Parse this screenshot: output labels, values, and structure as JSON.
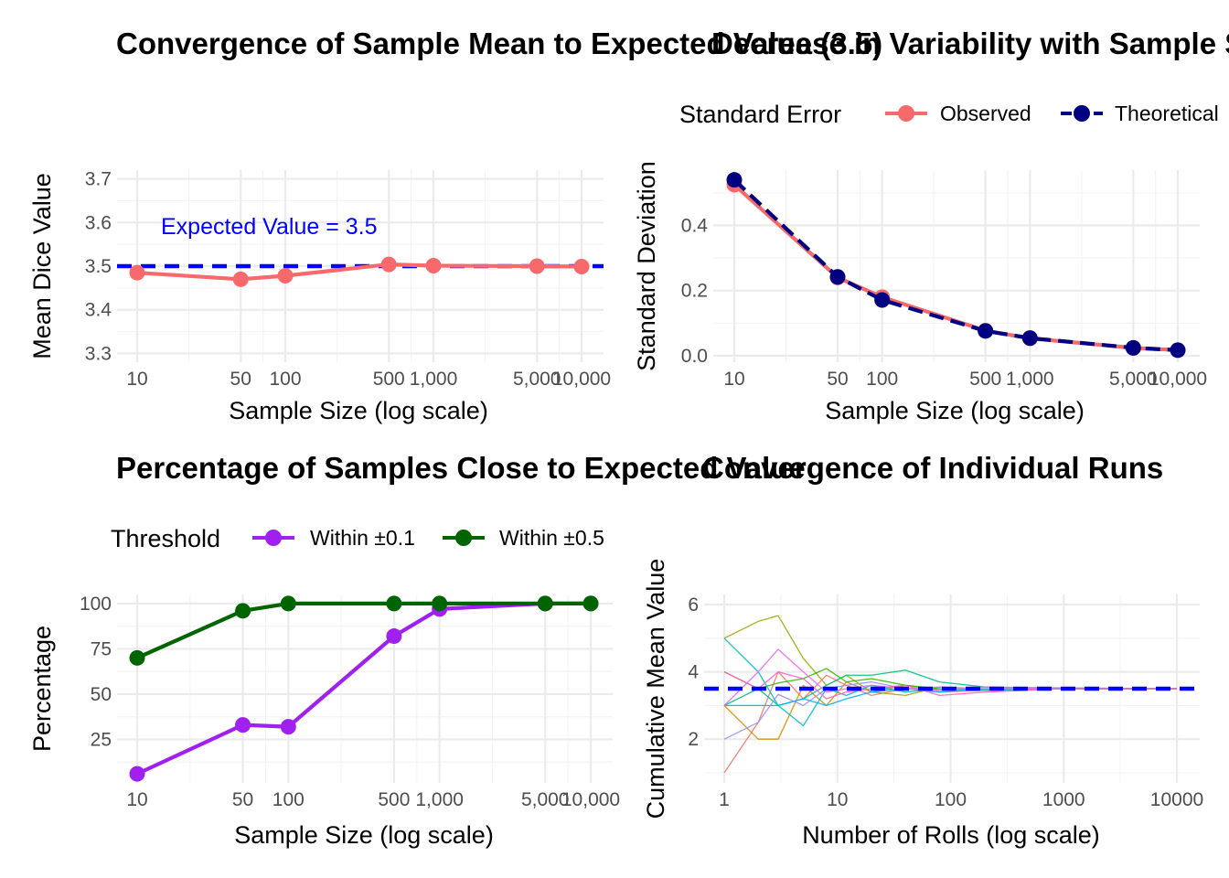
{
  "chart_data": [
    {
      "type": "line",
      "title": "Convergence of Sample Mean to Expected Value (3.5)",
      "xlabel": "Sample Size (log scale)",
      "ylabel": "Mean Dice Value",
      "x_scale": "log10",
      "x_ticks": [
        10,
        50,
        100,
        500,
        1000,
        5000,
        10000
      ],
      "x_tick_labels": [
        "10",
        "50",
        "100",
        "500",
        "1,000",
        "5,000",
        "10,000"
      ],
      "y_ticks": [
        3.3,
        3.4,
        3.5,
        3.6,
        3.7
      ],
      "y_tick_labels": [
        "3.3",
        "3.4",
        "3.5",
        "3.6",
        "3.7"
      ],
      "ylim": [
        3.28,
        3.72
      ],
      "grid": true,
      "series": [
        {
          "color": "#f8696b",
          "x": [
            10,
            50,
            100,
            500,
            1000,
            5000,
            10000
          ],
          "values": [
            3.485,
            3.47,
            3.478,
            3.504,
            3.501,
            3.5,
            3.499
          ]
        }
      ],
      "reference_line": {
        "y": 3.5,
        "color": "#0000ff",
        "style": "dashed"
      },
      "annotation": {
        "text": "Expected Value = 3.5",
        "x": 10,
        "y": 3.59,
        "color": "#0000ff"
      }
    },
    {
      "type": "line",
      "title": "Decrease in Variability with Sample Size",
      "xlabel": "Sample Size (log scale)",
      "ylabel": "Standard Deviation",
      "x_scale": "log10",
      "x_ticks": [
        10,
        50,
        100,
        500,
        1000,
        5000,
        10000
      ],
      "x_tick_labels": [
        "10",
        "50",
        "100",
        "500",
        "1,000",
        "5,000",
        "10,000"
      ],
      "y_ticks": [
        0.0,
        0.2,
        0.4
      ],
      "y_tick_labels": [
        "0.0",
        "0.2",
        "0.4"
      ],
      "ylim": [
        -0.02,
        0.57
      ],
      "grid": true,
      "legend": {
        "title": "Standard Error",
        "position": "top"
      },
      "series": [
        {
          "name": "Observed",
          "color": "#f8696b",
          "style": "solid",
          "x": [
            10,
            50,
            100,
            500,
            1000,
            5000,
            10000
          ],
          "values": [
            0.525,
            0.24,
            0.18,
            0.077,
            0.053,
            0.024,
            0.017
          ]
        },
        {
          "name": "Theoretical",
          "color": "#000080",
          "style": "dashed",
          "x": [
            10,
            50,
            100,
            500,
            1000,
            5000,
            10000
          ],
          "values": [
            0.54,
            0.242,
            0.171,
            0.076,
            0.054,
            0.024,
            0.017
          ]
        }
      ]
    },
    {
      "type": "line",
      "title": "Percentage of Samples Close to Expected Value",
      "xlabel": "Sample Size (log scale)",
      "ylabel": "Percentage",
      "x_scale": "log10",
      "x_ticks": [
        10,
        50,
        100,
        500,
        1000,
        5000,
        10000
      ],
      "x_tick_labels": [
        "10",
        "50",
        "100",
        "500",
        "1,000",
        "5,000",
        "10,000"
      ],
      "y_ticks": [
        25,
        50,
        75,
        100
      ],
      "y_tick_labels": [
        "25",
        "50",
        "75",
        "100"
      ],
      "ylim": [
        1,
        105
      ],
      "grid": true,
      "legend": {
        "title": "Threshold",
        "position": "top"
      },
      "series": [
        {
          "name": "Within ±0.1",
          "color": "#a020f0",
          "x": [
            10,
            50,
            100,
            500,
            1000,
            5000,
            10000
          ],
          "values": [
            6,
            33,
            32,
            82,
            97,
            100,
            100
          ]
        },
        {
          "name": "Within ±0.5",
          "color": "#006400",
          "x": [
            10,
            50,
            100,
            500,
            1000,
            5000,
            10000
          ],
          "values": [
            70,
            96,
            100,
            100,
            100,
            100,
            100
          ]
        }
      ]
    },
    {
      "type": "line",
      "title": "Convergence of Individual Runs",
      "xlabel": "Number of Rolls (log scale)",
      "ylabel": "Cumulative Mean Value",
      "x_scale": "log10",
      "x_ticks": [
        1,
        10,
        100,
        1000,
        10000
      ],
      "x_tick_labels": [
        "1",
        "10",
        "100",
        "1000",
        "10000"
      ],
      "y_ticks": [
        2,
        4,
        6
      ],
      "y_tick_labels": [
        "2",
        "4",
        "6"
      ],
      "ylim": [
        0.7,
        6.3
      ],
      "xlim": [
        1,
        13000
      ],
      "grid": true,
      "reference_line": {
        "y": 3.5,
        "color": "#0000ff",
        "style": "dashed"
      },
      "runs": [
        {
          "color": "#f8766d",
          "x": [
            1,
            2,
            3,
            5,
            8,
            12,
            20,
            40,
            80,
            200,
            1000,
            10000
          ],
          "values": [
            1.0,
            2.5,
            4.0,
            3.2,
            3.9,
            3.6,
            3.3,
            3.5,
            3.4,
            3.45,
            3.52,
            3.5
          ]
        },
        {
          "color": "#d89000",
          "x": [
            1,
            2,
            3,
            5,
            8,
            12,
            20,
            40,
            80,
            200,
            1000,
            10000
          ],
          "values": [
            3.0,
            2.0,
            2.0,
            3.6,
            3.0,
            3.7,
            3.4,
            3.6,
            3.45,
            3.55,
            3.49,
            3.5
          ]
        },
        {
          "color": "#a3a500",
          "x": [
            1,
            2,
            3,
            5,
            8,
            12,
            20,
            40,
            80,
            200,
            1000,
            10000
          ],
          "values": [
            5.0,
            5.5,
            5.67,
            4.4,
            3.6,
            3.9,
            3.4,
            3.3,
            3.55,
            3.48,
            3.51,
            3.5
          ]
        },
        {
          "color": "#39b600",
          "x": [
            1,
            2,
            3,
            5,
            8,
            12,
            20,
            40,
            80,
            200,
            1000,
            10000
          ],
          "values": [
            4.0,
            3.5,
            3.67,
            3.8,
            4.1,
            3.7,
            3.8,
            3.6,
            3.5,
            3.45,
            3.5,
            3.5
          ]
        },
        {
          "color": "#00bf7d",
          "x": [
            1,
            2,
            3,
            5,
            8,
            12,
            20,
            40,
            80,
            200,
            1000,
            10000
          ],
          "values": [
            3.0,
            3.5,
            3.0,
            3.2,
            3.6,
            3.9,
            3.9,
            4.05,
            3.7,
            3.55,
            3.52,
            3.5
          ]
        },
        {
          "color": "#00bfc4",
          "x": [
            1,
            2,
            3,
            5,
            8,
            12,
            20,
            40,
            80,
            200,
            1000,
            10000
          ],
          "values": [
            5.0,
            4.0,
            3.0,
            2.4,
            3.5,
            3.3,
            3.6,
            3.4,
            3.5,
            3.45,
            3.5,
            3.5
          ]
        },
        {
          "color": "#00b0f6",
          "x": [
            1,
            2,
            3,
            5,
            8,
            12,
            20,
            40,
            80,
            200,
            1000,
            10000
          ],
          "values": [
            3.0,
            3.0,
            3.0,
            3.2,
            3.0,
            3.2,
            3.4,
            3.5,
            3.4,
            3.5,
            3.5,
            3.5
          ]
        },
        {
          "color": "#9590ff",
          "x": [
            1,
            2,
            3,
            5,
            8,
            12,
            20,
            40,
            80,
            200,
            1000,
            10000
          ],
          "values": [
            2.0,
            2.5,
            3.33,
            3.0,
            3.5,
            3.6,
            3.7,
            3.5,
            3.55,
            3.5,
            3.5,
            3.5
          ]
        },
        {
          "color": "#e76bf3",
          "x": [
            1,
            2,
            3,
            5,
            8,
            12,
            20,
            40,
            80,
            200,
            1000,
            10000
          ],
          "values": [
            3.0,
            4.0,
            4.67,
            4.0,
            3.4,
            3.5,
            3.6,
            3.5,
            3.45,
            3.55,
            3.5,
            3.5
          ]
        },
        {
          "color": "#ff62bc",
          "x": [
            1,
            2,
            3,
            5,
            8,
            12,
            20,
            40,
            80,
            200,
            1000,
            10000
          ],
          "values": [
            4.0,
            3.5,
            4.0,
            3.8,
            3.2,
            3.4,
            3.5,
            3.6,
            3.3,
            3.4,
            3.5,
            3.5
          ]
        }
      ]
    }
  ]
}
